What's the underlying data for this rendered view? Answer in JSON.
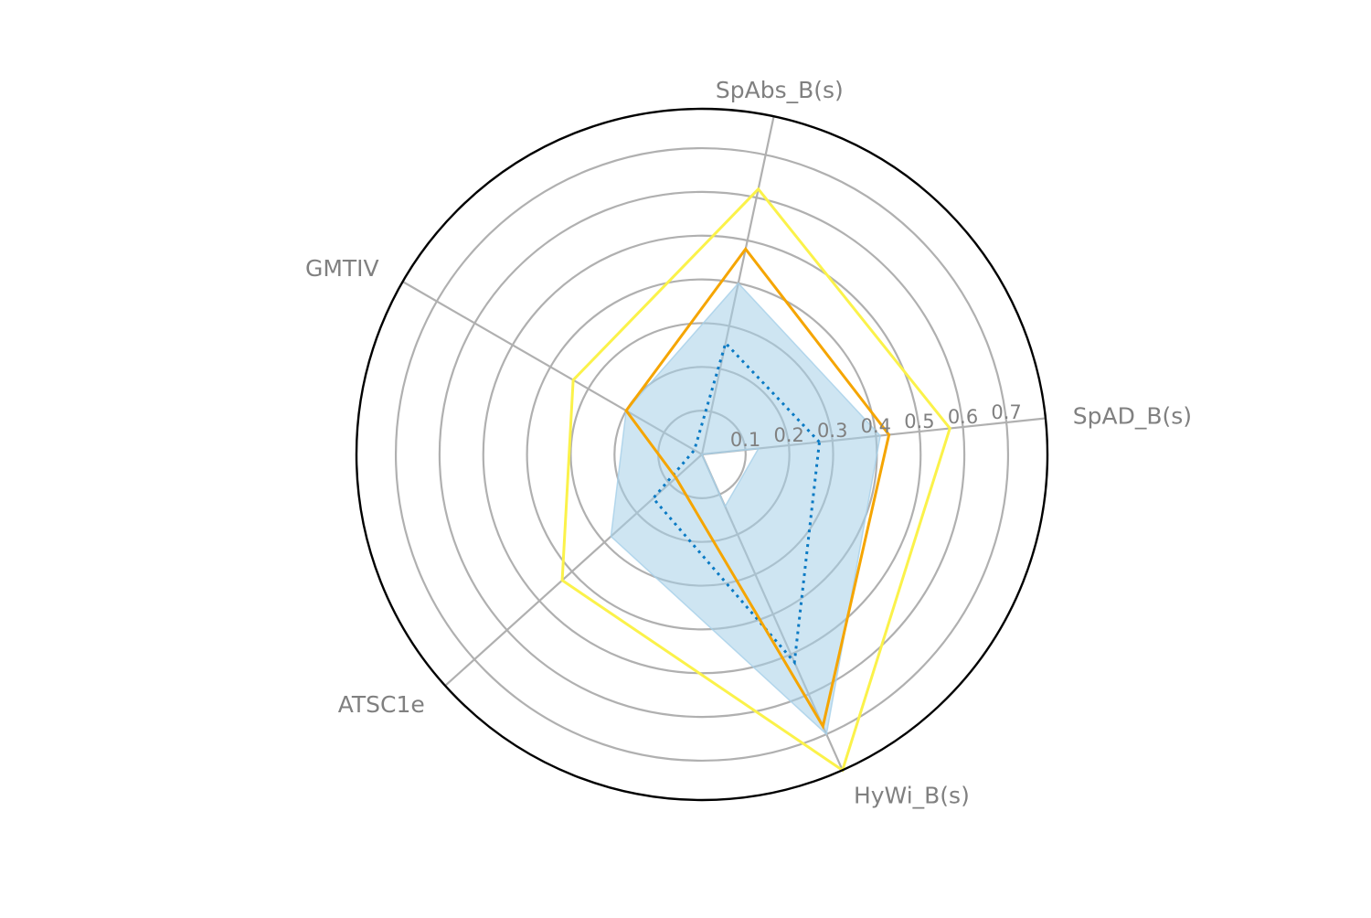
{
  "chart_data": {
    "type": "radar",
    "axes": [
      "SpAD_B(s)",
      "SpAbs_B(s)",
      "GMTIV",
      "ATSC1e",
      "HyWi_B(s)"
    ],
    "r_ticks": [
      0.1,
      0.2,
      0.3,
      0.4,
      0.5,
      0.6,
      0.7
    ],
    "r_tick_labels": [
      "0.1",
      "0.2",
      "0.3",
      "0.4",
      "0.5",
      "0.6",
      "0.7"
    ],
    "rlim": [
      0,
      0.79
    ],
    "grid": true,
    "band": {
      "color": "#a6cfe8",
      "lower": [
        0.13,
        0.0,
        0.0,
        0.0,
        0.13
      ],
      "upper": [
        0.41,
        0.4,
        0.2,
        0.28,
        0.7
      ]
    },
    "series": [
      {
        "values": [
          0.27,
          0.26,
          0.02,
          0.15,
          0.52
        ],
        "color": "#0a7ac4",
        "style": "dotted"
      },
      {
        "values": [
          0.43,
          0.48,
          0.2,
          0.08,
          0.68
        ],
        "color": "#f5a500",
        "style": "solid"
      },
      {
        "values": [
          0.57,
          0.62,
          0.34,
          0.43,
          0.79
        ],
        "color": "#fbf24a",
        "style": "solid"
      }
    ]
  }
}
